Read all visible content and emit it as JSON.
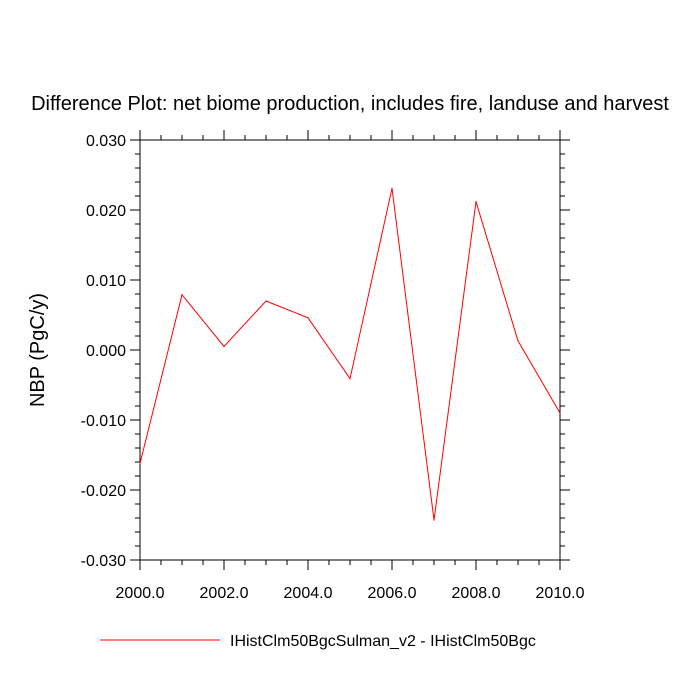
{
  "chart_data": {
    "type": "line",
    "title": "Difference Plot: net biome production, includes fire, landuse and harvest",
    "xlabel": "",
    "ylabel": "NBP  (PgC/y)",
    "xlim": [
      2000,
      2010
    ],
    "ylim": [
      -0.03,
      0.03
    ],
    "x_ticks": [
      2000,
      2002,
      2004,
      2006,
      2008,
      2010
    ],
    "x_tick_labels": [
      "2000.0",
      "2002.0",
      "2004.0",
      "2006.0",
      "2008.0",
      "2010.0"
    ],
    "y_ticks": [
      -0.03,
      -0.02,
      -0.01,
      0.0,
      0.01,
      0.02,
      0.03
    ],
    "y_tick_labels": [
      "-0.030",
      "-0.020",
      "-0.010",
      "0.000",
      "0.010",
      "0.020",
      "0.030"
    ],
    "grid": false,
    "legend_position": "bottom",
    "series": [
      {
        "name": "IHistClm50BgcSulman_v2 - IHistClm50Bgc",
        "color": "#ff0000",
        "x": [
          2000,
          2001,
          2002,
          2003,
          2004,
          2005,
          2006,
          2007,
          2008,
          2009,
          2010
        ],
        "y": [
          -0.0162,
          0.0079,
          0.0005,
          0.007,
          0.0046,
          -0.0041,
          0.0231,
          -0.0243,
          0.0212,
          0.0013,
          -0.009
        ]
      }
    ]
  }
}
